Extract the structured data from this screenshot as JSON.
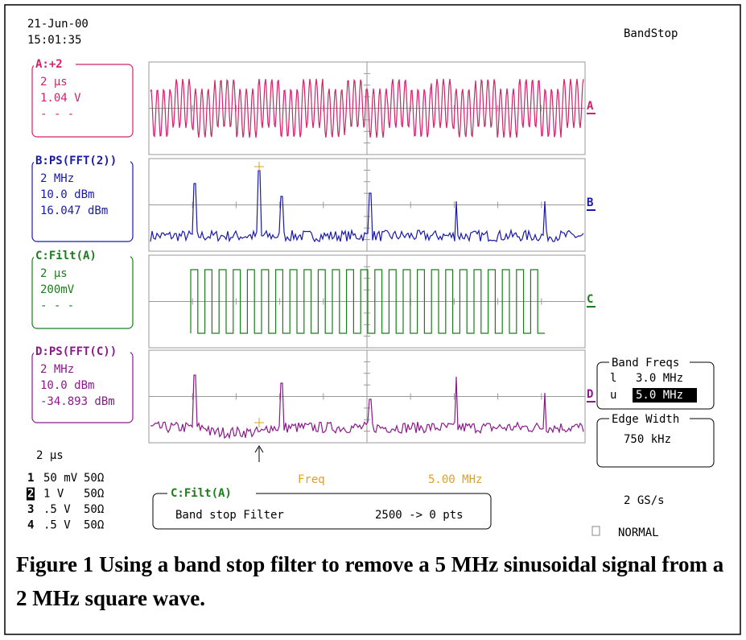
{
  "header": {
    "date": "21-Jun-00",
    "time": "15:01:35",
    "setup": "BandStop"
  },
  "traces": [
    {
      "label": "A:+2",
      "lines": [
        "2 µs",
        "1.04 V",
        "- - -"
      ],
      "marker": "A"
    },
    {
      "label": "B:PS(FFT(2))",
      "lines": [
        "2 MHz",
        "10.0 dBm",
        "16.047 dBm"
      ],
      "marker": "B"
    },
    {
      "label": "C:Filt(A)",
      "lines": [
        "2 µs",
        "200mV",
        "- - -"
      ],
      "marker": "C"
    },
    {
      "label": "D:PS(FFT(C))",
      "lines": [
        "2 MHz",
        "10.0 dBm",
        "-34.893 dBm"
      ],
      "marker": "D"
    }
  ],
  "band_freqs": {
    "title": "Band Freqs",
    "lower_label": "l",
    "lower": "3.0 MHz",
    "upper_label": "u",
    "upper": "5.0 MHz"
  },
  "edge_width": {
    "title": "Edge Width",
    "value": "750 kHz"
  },
  "timebase": "2 µs",
  "channels": [
    [
      "1",
      "50 mV",
      "50Ω"
    ],
    [
      "2",
      "1 V",
      "50Ω"
    ],
    [
      "3",
      ".5 V",
      "50Ω"
    ],
    [
      "4",
      ".5 V",
      "50Ω"
    ]
  ],
  "cursor": {
    "label": "Freq",
    "value": "5.00 MHz"
  },
  "math": {
    "title": "C:Filt(A)",
    "description": "Band stop Filter",
    "points": "2500 -> 0 pts"
  },
  "sample_rate": "2 GS/s",
  "trigger_mode": "NORMAL",
  "caption": "Figure 1 Using a band stop filter to remove a 5 MHz sinusoidal signal from a 2 MHz square wave."
}
